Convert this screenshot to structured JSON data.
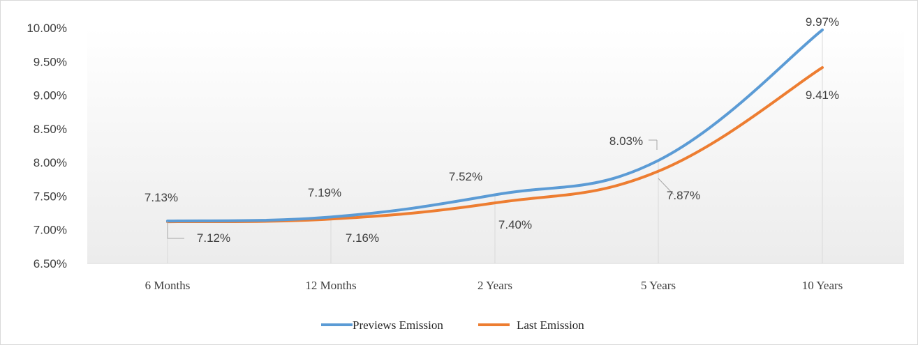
{
  "chart_data": {
    "type": "line",
    "categories": [
      "6 Months",
      "12 Months",
      "2 Years",
      "5 Years",
      "10 Years"
    ],
    "series": [
      {
        "name": "Previews Emission",
        "values": [
          7.13,
          7.19,
          7.52,
          8.03,
          9.97
        ],
        "labels": [
          "7.13%",
          "7.19%",
          "7.52%",
          "8.03%",
          "9.97%"
        ],
        "color": "#5b9bd5"
      },
      {
        "name": "Last Emission",
        "values": [
          7.12,
          7.16,
          7.4,
          7.87,
          9.41
        ],
        "labels": [
          "7.12%",
          "7.16%",
          "7.40%",
          "7.87%",
          "9.41%"
        ],
        "color": "#ed7d31"
      }
    ],
    "ylim": [
      6.5,
      10.0
    ],
    "yticks": [
      "6.50%",
      "7.00%",
      "7.50%",
      "8.00%",
      "8.50%",
      "9.00%",
      "9.50%",
      "10.00%"
    ],
    "ytick_values": [
      6.5,
      7.0,
      7.5,
      8.0,
      8.5,
      9.0,
      9.5,
      10.0
    ],
    "legend_position": "bottom",
    "grid": false,
    "smooth": true
  }
}
